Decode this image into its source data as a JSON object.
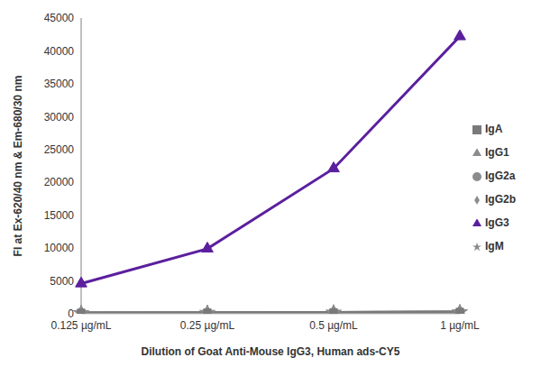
{
  "chart_data": {
    "type": "line",
    "x_label": "Dilution of Goat Anti-Mouse IgG3, Human ads-CY5",
    "y_label": "FI at Ex-620/40 nm & Em-680/30 nm",
    "categories": [
      "0.125 µg/mL",
      "0.25 µg/mL",
      "0.5 µg/mL",
      "1 µg/mL"
    ],
    "series": [
      {
        "name": "IgG1",
        "color": "#8c8c8c",
        "marker": "triangle",
        "values": [
          150,
          180,
          220,
          280
        ]
      },
      {
        "name": "IgG2a",
        "color": "#8c8c8c",
        "marker": "circle",
        "values": [
          120,
          150,
          190,
          240
        ]
      },
      {
        "name": "IgG2b",
        "color": "#8c8c8c",
        "marker": "diamond",
        "values": [
          130,
          160,
          200,
          260
        ]
      },
      {
        "name": "IgG3",
        "color": "#5b1f9e",
        "marker": "triangle",
        "values": [
          4600,
          9900,
          22100,
          42200
        ]
      },
      {
        "name": "IgM",
        "color": "#8c8c8c",
        "marker": "star",
        "values": [
          110,
          140,
          180,
          230
        ]
      },
      {
        "name": "IgA",
        "color": "#7a7a7a",
        "marker": "square",
        "values": [
          140,
          170,
          210,
          270
        ]
      }
    ],
    "ylim": [
      0,
      45000
    ],
    "yticks": [
      0,
      5000,
      10000,
      15000,
      20000,
      25000,
      30000,
      35000,
      40000,
      45000
    ],
    "grid": false,
    "legend": "right"
  }
}
